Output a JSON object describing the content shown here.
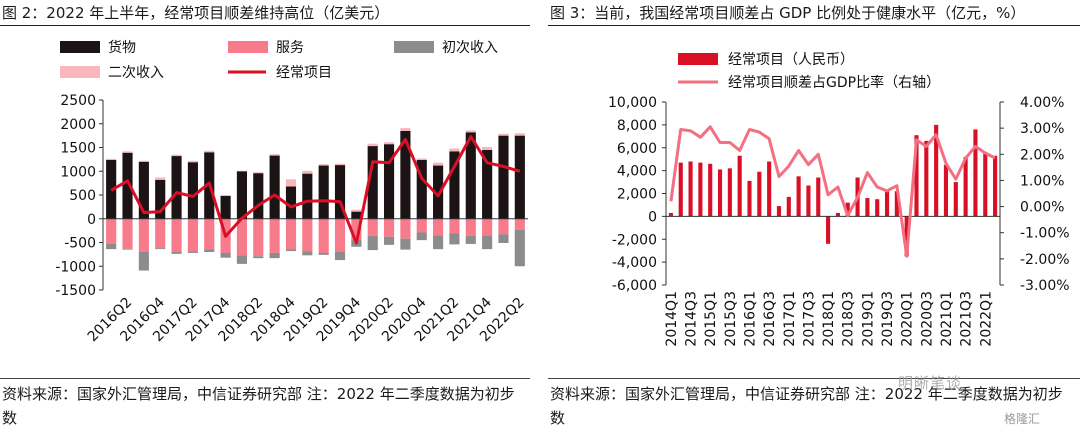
{
  "left": {
    "title": "图 2：2022 年上半年，经常项目顺差维持高位（亿美元）",
    "source": "资料来源：国家外汇管理局，中信证券研究部  注：2022 年二季度数据为初步数",
    "legend": [
      {
        "label": "货物",
        "color": "#1c1315"
      },
      {
        "label": "服务",
        "color": "#f77b8a"
      },
      {
        "label": "初次收入",
        "color": "#8c8c8c"
      },
      {
        "label": "二次收入",
        "color": "#f9b7bd"
      },
      {
        "label": "经常项目",
        "color": "#d90f26"
      }
    ]
  },
  "right": {
    "title": "图 3：当前，我国经常项目顺差占 GDP 比例处于健康水平（亿元，%）",
    "source": "资料来源：国家外汇管理局，中信证券研究部  注：2022 年二季度数据为初步数",
    "legend": [
      {
        "label": "经常项目（人民币）",
        "color": "#d90f26"
      },
      {
        "label": "经常项目顺差占GDP比率（右轴）",
        "color": "#f36f82"
      }
    ],
    "watermark": "明晰笔谈",
    "watermark2": "格隆汇"
  },
  "chart_data": [
    {
      "type": "bar",
      "title": "图 2：2022 年上半年，经常项目顺差维持高位（亿美元）",
      "stacked": true,
      "ylim": [
        -1500,
        2500
      ],
      "yticks": [
        -1500,
        -1000,
        -500,
        0,
        500,
        1000,
        1500,
        2000,
        2500
      ],
      "categories": [
        "2016Q1",
        "2016Q2",
        "2016Q3",
        "2016Q4",
        "2017Q1",
        "2017Q2",
        "2017Q3",
        "2017Q4",
        "2018Q1",
        "2018Q2",
        "2018Q3",
        "2018Q4",
        "2019Q1",
        "2019Q2",
        "2019Q3",
        "2019Q4",
        "2020Q1",
        "2020Q2",
        "2020Q3",
        "2020Q4",
        "2021Q1",
        "2021Q2",
        "2021Q3",
        "2021Q4",
        "2022Q1",
        "2022Q2"
      ],
      "xtick_labels": [
        "2016Q2",
        "2016Q4",
        "2017Q2",
        "2017Q4",
        "2018Q2",
        "2018Q4",
        "2019Q2",
        "2019Q4",
        "2020Q2",
        "2020Q4",
        "2021Q2",
        "2021Q4",
        "2022Q2"
      ],
      "series": [
        {
          "name": "货物",
          "type": "bar",
          "color": "#1c1315",
          "values": [
            1240,
            1390,
            1200,
            820,
            1320,
            1190,
            1400,
            480,
            1000,
            960,
            1330,
            680,
            950,
            1120,
            1130,
            150,
            1530,
            1570,
            1850,
            1240,
            1120,
            1420,
            1820,
            1450,
            1750,
            1750
          ]
        },
        {
          "name": "服务",
          "type": "bar",
          "color": "#f77b8a",
          "values": [
            -530,
            -630,
            -700,
            -620,
            -700,
            -690,
            -640,
            -720,
            -770,
            -790,
            -720,
            -640,
            -690,
            -720,
            -700,
            -430,
            -360,
            -380,
            -420,
            -290,
            -350,
            -310,
            -360,
            -350,
            -330,
            -230
          ]
        },
        {
          "name": "初次收入",
          "type": "bar",
          "color": "#8c8c8c",
          "values": [
            -110,
            -20,
            -390,
            -20,
            -40,
            -30,
            -60,
            -100,
            -180,
            -40,
            -110,
            -40,
            -80,
            -40,
            -170,
            -160,
            -300,
            -170,
            -230,
            -160,
            -290,
            -230,
            -170,
            -290,
            -180,
            -770
          ]
        },
        {
          "name": "二次收入",
          "type": "bar",
          "color": "#f9b7bd",
          "values": [
            20,
            30,
            20,
            50,
            30,
            30,
            30,
            20,
            10,
            20,
            30,
            150,
            60,
            30,
            30,
            40,
            50,
            40,
            60,
            30,
            60,
            60,
            40,
            60,
            40,
            50
          ]
        },
        {
          "name": "经常项目",
          "type": "line",
          "color": "#d90f26",
          "values": [
            600,
            800,
            130,
            150,
            550,
            470,
            750,
            -370,
            10,
            280,
            500,
            250,
            370,
            380,
            360,
            -510,
            1200,
            1180,
            1670,
            850,
            480,
            1100,
            1730,
            1180,
            1100,
            1000
          ]
        }
      ]
    },
    {
      "type": "bar",
      "title": "图 3：当前，我国经常项目顺差占 GDP 比例处于健康水平（亿元，%）",
      "ylim": [
        -6000,
        10000
      ],
      "yticks": [
        -6000,
        -4000,
        -2000,
        0,
        2000,
        4000,
        6000,
        8000,
        10000
      ],
      "y2lim": [
        -3.0,
        4.0
      ],
      "y2ticks": [
        -3.0,
        -2.0,
        -1.0,
        0.0,
        1.0,
        2.0,
        3.0,
        4.0
      ],
      "categories": [
        "2014Q1",
        "2014Q2",
        "2014Q3",
        "2014Q4",
        "2015Q1",
        "2015Q2",
        "2015Q3",
        "2015Q4",
        "2016Q1",
        "2016Q2",
        "2016Q3",
        "2016Q4",
        "2017Q1",
        "2017Q2",
        "2017Q3",
        "2017Q4",
        "2018Q1",
        "2018Q2",
        "2018Q3",
        "2018Q4",
        "2019Q1",
        "2019Q2",
        "2019Q3",
        "2019Q4",
        "2020Q1",
        "2020Q2",
        "2020Q3",
        "2020Q4",
        "2021Q1",
        "2021Q2",
        "2021Q3",
        "2021Q4",
        "2022Q1",
        "2022Q2"
      ],
      "xtick_labels": [
        "2014Q1",
        "2014Q3",
        "2015Q1",
        "2015Q3",
        "2016Q1",
        "2016Q3",
        "2017Q1",
        "2017Q3",
        "2018Q1",
        "2018Q3",
        "2019Q1",
        "2019Q3",
        "2020Q1",
        "2020Q3",
        "2021Q1",
        "2021Q3",
        "2022Q1"
      ],
      "series": [
        {
          "name": "经常项目（人民币）",
          "type": "bar",
          "axis": "left",
          "color": "#d90f26",
          "values": [
            300,
            4700,
            4800,
            4700,
            4600,
            4100,
            4200,
            5300,
            3100,
            3900,
            4800,
            900,
            1700,
            3500,
            2700,
            3400,
            -2400,
            300,
            1200,
            3400,
            1600,
            1500,
            2300,
            2200,
            -3500,
            7100,
            6600,
            8000,
            4500,
            3000,
            5200,
            7600,
            5600,
            5300
          ]
        },
        {
          "name": "经常项目顺差占GDP比率（右轴）",
          "type": "line",
          "axis": "right",
          "color": "#f36f82",
          "values": [
            0.2,
            2.95,
            2.9,
            2.65,
            3.05,
            2.45,
            2.45,
            2.15,
            2.95,
            2.85,
            2.6,
            1.15,
            1.55,
            2.15,
            1.6,
            2.0,
            0.45,
            0.75,
            -0.35,
            0.35,
            1.3,
            0.75,
            0.6,
            0.8,
            -1.9,
            2.55,
            2.3,
            2.75,
            1.65,
            1.05,
            1.85,
            2.3,
            2.05,
            1.85
          ]
        }
      ]
    }
  ]
}
